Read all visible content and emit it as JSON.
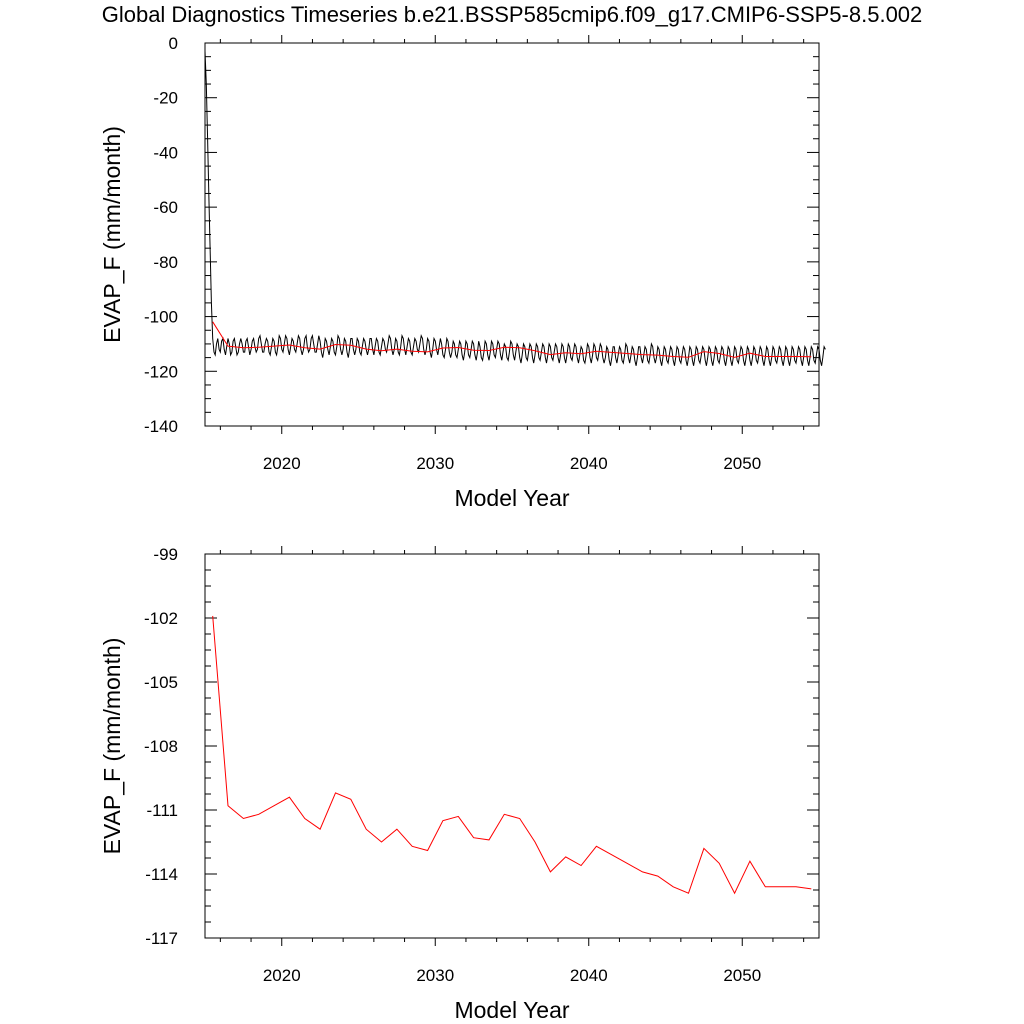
{
  "figure": {
    "title": "Global Diagnostics Timeseries b.e21.BSSP585cmip6.f09_g17.CMIP6-SSP5-8.5.002"
  },
  "colors": {
    "monthly": "#000000",
    "annual": "#ff0000",
    "frame": "#000000"
  },
  "chart_data": [
    {
      "type": "line",
      "title": "",
      "xlabel": "Model Year",
      "ylabel": "EVAP_F (mm/month)",
      "xlim": [
        2015,
        2055
      ],
      "ylim": [
        -140,
        0
      ],
      "x_ticks": [
        2020,
        2030,
        2040,
        2050
      ],
      "x_tick_labels": [
        "2020",
        "2030",
        "2040",
        "2050"
      ],
      "y_ticks": [
        0,
        -20,
        -40,
        -60,
        -80,
        -100,
        -120,
        -140
      ],
      "y_tick_labels": [
        "0",
        "-20",
        "-40",
        "-60",
        "-80",
        "-100",
        "-120",
        "-140"
      ],
      "grid": false,
      "legend": "none",
      "series": [
        {
          "description": "monthly values (black)",
          "x_start": 2015.0,
          "x_step_months": 1,
          "values": [
            -3,
            -15,
            -35,
            -55,
            -75,
            -95,
            -108,
            -113,
            -114,
            -110,
            -108,
            -112,
            -113,
            -109,
            -108,
            -112,
            -114,
            -111,
            -108,
            -110,
            -114,
            -113,
            -109,
            -108,
            -111,
            -114,
            -113,
            -110,
            -108,
            -110,
            -113,
            -113,
            -109,
            -108,
            -111,
            -114,
            -112,
            -109,
            -108,
            -111,
            -113,
            -112,
            -108,
            -107,
            -110,
            -113,
            -113,
            -110,
            -108,
            -109,
            -113,
            -114,
            -111,
            -108,
            -109,
            -113,
            -114,
            -111,
            -107,
            -108,
            -112,
            -113,
            -110,
            -107,
            -108,
            -112,
            -114,
            -111,
            -108,
            -109,
            -112,
            -113,
            -110,
            -107,
            -108,
            -112,
            -114,
            -112,
            -108,
            -107,
            -111,
            -113,
            -112,
            -108,
            -107,
            -110,
            -113,
            -113,
            -110,
            -107,
            -109,
            -113,
            -115,
            -112,
            -108,
            -109,
            -112,
            -114,
            -111,
            -108,
            -109,
            -113,
            -114,
            -111,
            -107,
            -108,
            -112,
            -114,
            -112,
            -108,
            -109,
            -113,
            -115,
            -112,
            -108,
            -108,
            -112,
            -114,
            -112,
            -108,
            -109,
            -113,
            -114,
            -111,
            -108,
            -109,
            -112,
            -114,
            -112,
            -108,
            -108,
            -112,
            -114,
            -111,
            -108,
            -109,
            -113,
            -114,
            -111,
            -108,
            -109,
            -112,
            -113,
            -110,
            -107,
            -108,
            -112,
            -114,
            -112,
            -108,
            -109,
            -113,
            -114,
            -111,
            -107,
            -108,
            -112,
            -114,
            -111,
            -108,
            -109,
            -113,
            -114,
            -111,
            -108,
            -109,
            -112,
            -113,
            -110,
            -107,
            -108,
            -112,
            -114,
            -112,
            -108,
            -109,
            -113,
            -115,
            -112,
            -108,
            -109,
            -112,
            -114,
            -111,
            -108,
            -110,
            -114,
            -115,
            -112,
            -108,
            -109,
            -113,
            -115,
            -113,
            -109,
            -110,
            -114,
            -115,
            -112,
            -109,
            -110,
            -114,
            -116,
            -113,
            -109,
            -110,
            -114,
            -115,
            -112,
            -109,
            -110,
            -114,
            -116,
            -113,
            -109,
            -111,
            -115,
            -116,
            -113,
            -109,
            -110,
            -114,
            -116,
            -113,
            -109,
            -110,
            -114,
            -115,
            -112,
            -109,
            -110,
            -114,
            -116,
            -113,
            -110,
            -111,
            -115,
            -116,
            -113,
            -109,
            -110,
            -114,
            -116,
            -113,
            -110,
            -111,
            -115,
            -117,
            -114,
            -110,
            -111,
            -115,
            -116,
            -113,
            -110,
            -111,
            -115,
            -117,
            -114,
            -110,
            -111,
            -115,
            -116,
            -113,
            -110,
            -111,
            -115,
            -117,
            -114,
            -110,
            -111,
            -115,
            -116,
            -113,
            -110,
            -111,
            -115,
            -117,
            -114,
            -110,
            -111,
            -115,
            -117,
            -114,
            -110,
            -111,
            -115,
            -116,
            -113,
            -110,
            -111,
            -115,
            -117,
            -114,
            -111,
            -112,
            -116,
            -117,
            -114,
            -110,
            -111,
            -115,
            -117,
            -114,
            -110,
            -111,
            -115,
            -116,
            -113,
            -110,
            -111,
            -115,
            -117,
            -115,
            -111,
            -112,
            -116,
            -118,
            -115,
            -111,
            -111,
            -115,
            -117,
            -114,
            -111,
            -112,
            -116,
            -117,
            -114,
            -110,
            -111,
            -115,
            -117,
            -114,
            -111,
            -112,
            -116,
            -118,
            -115,
            -111,
            -111,
            -115,
            -117,
            -114,
            -111,
            -112,
            -116,
            -117,
            -114,
            -110,
            -111,
            -115,
            -117,
            -115,
            -111,
            -112,
            -116,
            -118,
            -115,
            -111,
            -112,
            -116,
            -117,
            -114,
            -111,
            -112,
            -116,
            -118,
            -115,
            -111,
            -112,
            -116,
            -117,
            -114,
            -111,
            -112,
            -116,
            -118,
            -115,
            -111,
            -112,
            -116,
            -118,
            -115,
            -111,
            -112,
            -116,
            -117,
            -114,
            -111,
            -112,
            -116,
            -118,
            -115,
            -111,
            -112,
            -116,
            -118,
            -115,
            -111,
            -112,
            -116,
            -117,
            -114,
            -111,
            -112,
            -116,
            -118,
            -115,
            -111,
            -112,
            -116,
            -118,
            -115,
            -111,
            -112,
            -116,
            -117,
            -114,
            -111,
            -112,
            -116,
            -118,
            -115,
            -111,
            -112,
            -116,
            -118,
            -115,
            -111,
            -112,
            -116,
            -117,
            -114,
            -111,
            -112,
            -116,
            -118,
            -115,
            -111,
            -112,
            -116,
            -118,
            -115,
            -111,
            -112,
            -116,
            -117,
            -114,
            -111,
            -112,
            -116,
            -118,
            -115,
            -111,
            -112,
            -116,
            -118,
            -115,
            -111,
            -112,
            -116,
            -117,
            -114,
            -111,
            -112,
            -116,
            -118,
            -115,
            -111,
            -112,
            -116,
            -118,
            -115,
            -111,
            -112,
            -116,
            -117,
            -114,
            -111,
            -112,
            -116,
            -118,
            -115,
            -111,
            -112
          ]
        },
        {
          "description": "annual mean (red)",
          "x": [
            2015.5,
            2016.5,
            2017.5,
            2018.5,
            2019.5,
            2020.5,
            2021.5,
            2022.5,
            2023.5,
            2024.5,
            2025.5,
            2026.5,
            2027.5,
            2028.5,
            2029.5,
            2030.5,
            2031.5,
            2032.5,
            2033.5,
            2034.5,
            2035.5,
            2036.5,
            2037.5,
            2038.5,
            2039.5,
            2040.5,
            2041.5,
            2042.5,
            2043.5,
            2044.5,
            2045.5,
            2046.5,
            2047.5,
            2048.5,
            2049.5,
            2050.5,
            2051.5,
            2052.5,
            2053.5,
            2054.5
          ],
          "values": [
            -101.9,
            -110.8,
            -111.4,
            -111.2,
            -110.8,
            -110.4,
            -111.4,
            -111.9,
            -110.2,
            -110.5,
            -111.9,
            -112.5,
            -111.9,
            -112.7,
            -112.9,
            -111.5,
            -111.3,
            -112.3,
            -112.4,
            -111.2,
            -111.4,
            -112.5,
            -113.9,
            -113.2,
            -113.6,
            -112.7,
            -113.1,
            -113.5,
            -113.9,
            -114.1,
            -114.6,
            -114.9,
            -112.8,
            -113.5,
            -114.9,
            -113.4,
            -114.6,
            -114.6,
            -114.6,
            -114.7
          ]
        }
      ]
    },
    {
      "type": "line",
      "title": "",
      "xlabel": "Model Year",
      "ylabel": "EVAP_F (mm/month)",
      "xlim": [
        2015,
        2055
      ],
      "ylim": [
        -117,
        -99
      ],
      "x_ticks": [
        2020,
        2030,
        2040,
        2050
      ],
      "x_tick_labels": [
        "2020",
        "2030",
        "2040",
        "2050"
      ],
      "y_ticks": [
        -99,
        -102,
        -105,
        -108,
        -111,
        -114,
        -117
      ],
      "y_tick_labels": [
        "-99",
        "-102",
        "-105",
        "-108",
        "-111",
        "-114",
        "-117"
      ],
      "grid": false,
      "legend": "none",
      "series": [
        {
          "description": "annual mean (red)",
          "x": [
            2015.5,
            2016.5,
            2017.5,
            2018.5,
            2019.5,
            2020.5,
            2021.5,
            2022.5,
            2023.5,
            2024.5,
            2025.5,
            2026.5,
            2027.5,
            2028.5,
            2029.5,
            2030.5,
            2031.5,
            2032.5,
            2033.5,
            2034.5,
            2035.5,
            2036.5,
            2037.5,
            2038.5,
            2039.5,
            2040.5,
            2041.5,
            2042.5,
            2043.5,
            2044.5,
            2045.5,
            2046.5,
            2047.5,
            2048.5,
            2049.5,
            2050.5,
            2051.5,
            2052.5,
            2053.5,
            2054.5
          ],
          "values": [
            -101.9,
            -110.8,
            -111.4,
            -111.2,
            -110.8,
            -110.4,
            -111.4,
            -111.9,
            -110.2,
            -110.5,
            -111.9,
            -112.5,
            -111.9,
            -112.7,
            -112.9,
            -111.5,
            -111.3,
            -112.3,
            -112.4,
            -111.2,
            -111.4,
            -112.5,
            -113.9,
            -113.2,
            -113.6,
            -112.7,
            -113.1,
            -113.5,
            -113.9,
            -114.1,
            -114.6,
            -114.9,
            -112.8,
            -113.5,
            -114.9,
            -113.4,
            -114.6,
            -114.6,
            -114.6,
            -114.7
          ]
        }
      ]
    }
  ]
}
